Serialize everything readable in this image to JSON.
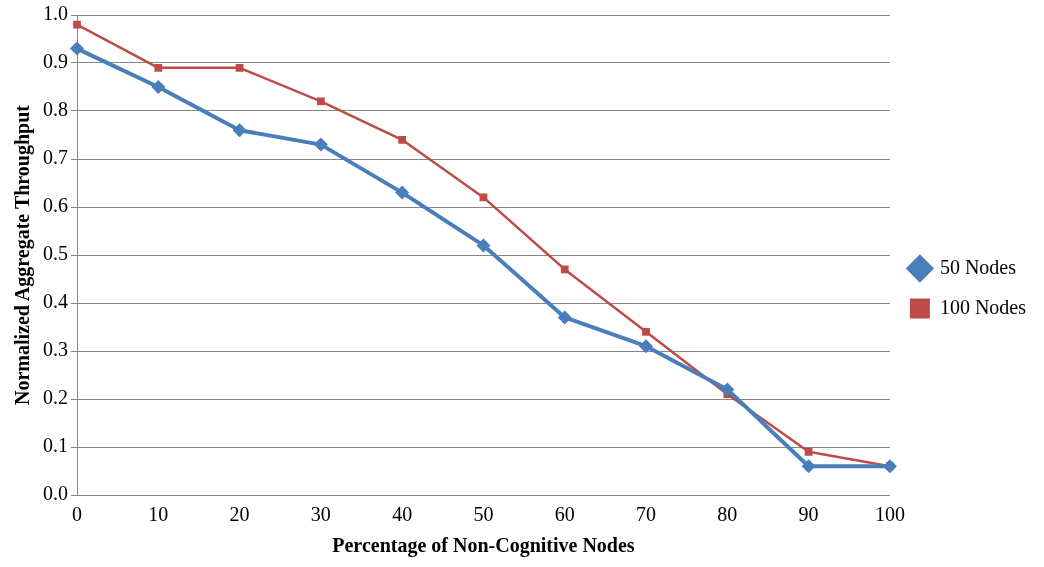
{
  "chart_data": {
    "type": "line",
    "xlabel": "Percentage of Non-Cognitive Nodes",
    "ylabel": "Normalized Aggregate Throughput",
    "categories": [
      "0",
      "10",
      "20",
      "30",
      "40",
      "50",
      "60",
      "70",
      "80",
      "90",
      "100"
    ],
    "ylim": [
      0,
      1
    ],
    "yticks": [
      {
        "value": 0,
        "label": "0.0"
      },
      {
        "value": 0.1,
        "label": "0.1"
      },
      {
        "value": 0.2,
        "label": "0.2"
      },
      {
        "value": 0.3,
        "label": "0.3"
      },
      {
        "value": 0.4,
        "label": "0.4"
      },
      {
        "value": 0.5,
        "label": "0.5"
      },
      {
        "value": 0.6,
        "label": "0.6"
      },
      {
        "value": 0.7,
        "label": "0.7"
      },
      {
        "value": 0.8,
        "label": "0.8"
      },
      {
        "value": 0.9,
        "label": "0.9"
      },
      {
        "value": 1,
        "label": "1.0"
      }
    ],
    "grid": "y",
    "legend": "right",
    "series": [
      {
        "name": "50 Nodes",
        "color": "#4a7ebb",
        "marker": "diamond",
        "values": [
          0.93,
          0.85,
          0.76,
          0.73,
          0.63,
          0.52,
          0.37,
          0.31,
          0.22,
          0.06,
          0.06
        ]
      },
      {
        "name": "100 Nodes",
        "color": "#be4b48",
        "marker": "square",
        "values": [
          0.98,
          0.89,
          0.89,
          0.82,
          0.74,
          0.62,
          0.47,
          0.34,
          0.21,
          0.09,
          0.06
        ]
      }
    ]
  }
}
